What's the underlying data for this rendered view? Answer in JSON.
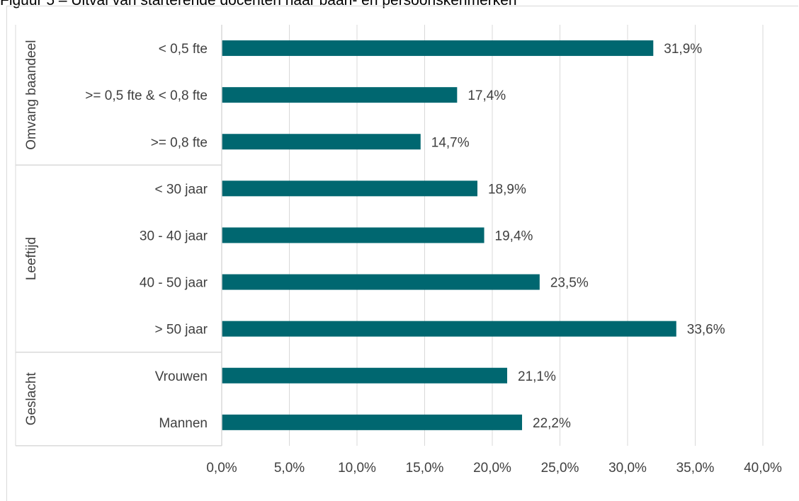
{
  "figure_title": "Figuur 5 – Uitval van starterende docenten naar baan- en persoonskenmerken",
  "colors": {
    "bar": "#006770",
    "grid": "#d9d9d9",
    "text": "#404040"
  },
  "chart_data": {
    "type": "bar",
    "orientation": "horizontal",
    "title": "",
    "xlabel": "",
    "ylabel": "",
    "xlim": [
      0,
      40
    ],
    "x_ticks": [
      "0,0%",
      "5,0%",
      "10,0%",
      "15,0%",
      "20,0%",
      "25,0%",
      "30,0%",
      "35,0%",
      "40,0%"
    ],
    "grid": "vertical",
    "groups": [
      {
        "name": "Omvang baandeel",
        "categories": [
          "< 0,5 fte",
          ">= 0,5 fte & < 0,8 fte",
          ">= 0,8 fte"
        ],
        "values": [
          31.9,
          17.4,
          14.7
        ],
        "labels": [
          "31,9%",
          "17,4%",
          "14,7%"
        ]
      },
      {
        "name": "Leeftijd",
        "categories": [
          "< 30 jaar",
          "30 - 40 jaar",
          "40 - 50 jaar",
          "> 50 jaar"
        ],
        "values": [
          18.9,
          19.4,
          23.5,
          33.6
        ],
        "labels": [
          "18,9%",
          "19,4%",
          "23,5%",
          "33,6%"
        ]
      },
      {
        "name": "Geslacht",
        "categories": [
          "Vrouwen",
          "Mannen"
        ],
        "values": [
          21.1,
          22.2
        ],
        "labels": [
          "21,1%",
          "22,2%"
        ]
      }
    ]
  }
}
